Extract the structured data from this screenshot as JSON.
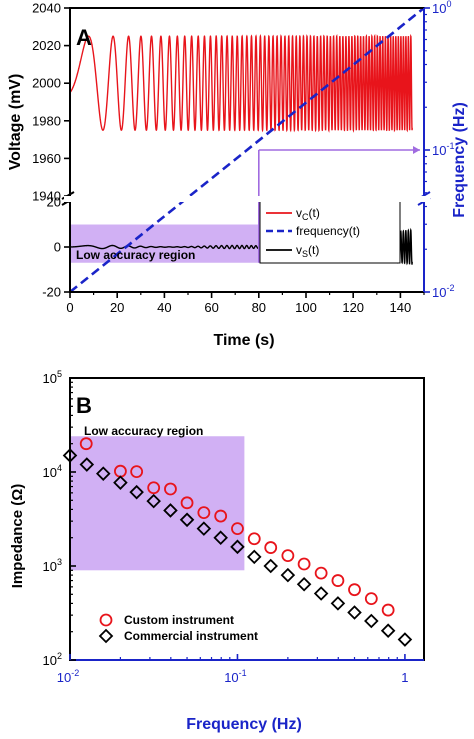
{
  "panel_a": {
    "letter": "A",
    "ylabel_left": "Voltage (mV)",
    "ylabel_right": "Frequency (Hz)",
    "xlabel": "Time (s)",
    "region_label": "Low accuracy region",
    "xticks": [
      "0",
      "20",
      "40",
      "60",
      "80",
      "100",
      "120",
      "140"
    ],
    "yticks_upper": [
      "1940",
      "1960",
      "1980",
      "2000",
      "2020",
      "2040"
    ],
    "yticks_lower": [
      "-20",
      "0",
      "20"
    ],
    "right_tick_labels": [
      {
        "base": "10",
        "exp": "0"
      },
      {
        "base": "10",
        "exp": "-1"
      },
      {
        "base": "10",
        "exp": "-2"
      }
    ],
    "legend": [
      {
        "pre": "v",
        "sub": "C",
        "post": "(t)"
      },
      {
        "pre": "frequency(t)",
        "sub": "",
        "post": ""
      },
      {
        "pre": "v",
        "sub": "S",
        "post": "(t)"
      }
    ]
  },
  "panel_b": {
    "letter": "B",
    "ylabel": "Impedance (Ω)",
    "xlabel": "Frequency (Hz)",
    "region_label": "Low accuracy region",
    "legend": [
      "Custom instrument",
      "Commercial instrument"
    ],
    "xtick_labels": [
      {
        "base": "10",
        "exp": "-2"
      },
      {
        "base": "10",
        "exp": "-1"
      },
      {
        "base": "10",
        "exp": ""
      },
      {
        "base": "",
        "exp": ""
      }
    ],
    "xtick_plain": [
      "",
      "",
      "1"
    ],
    "ytick_labels": [
      {
        "base": "10",
        "exp": "2"
      },
      {
        "base": "10",
        "exp": "3"
      },
      {
        "base": "10",
        "exp": "4"
      },
      {
        "base": "10",
        "exp": "5"
      }
    ]
  },
  "colors": {
    "red": "#e8141b",
    "blue": "#1a24c8",
    "purple": "#a06be0",
    "region": "#c9a2f2",
    "black": "#000000"
  },
  "chart_data": [
    {
      "type": "line",
      "panel": "A",
      "xlabel": "Time (s)",
      "ylabel": "Voltage (mV)",
      "y2label": "Frequency (Hz)",
      "xlim": [
        0,
        150
      ],
      "ylim_upper": [
        1940,
        2040
      ],
      "ylim_lower": [
        -20,
        20
      ],
      "y2lim": [
        0.01,
        1
      ],
      "y2scale": "log",
      "grid": false,
      "legend_position": "right",
      "series": [
        {
          "name": "vC(t)",
          "style": "red solid",
          "center": 2000,
          "amplitude": 25,
          "x_range": [
            0,
            145
          ]
        },
        {
          "name": "frequency(t)",
          "style": "blue dashed",
          "x": [
            0,
            150
          ],
          "y": [
            0.01,
            1
          ]
        },
        {
          "name": "vS(t)",
          "style": "black solid",
          "center": 0,
          "amplitude_max": 7,
          "x_range": [
            0,
            145
          ]
        }
      ],
      "annotations": [
        {
          "text": "Low accuracy region",
          "x_range": [
            0,
            80
          ],
          "y_range": [
            -7,
            10
          ]
        },
        {
          "marker": "frequency at 80 s",
          "x": 80,
          "y2": 0.1
        }
      ]
    },
    {
      "type": "scatter",
      "panel": "B",
      "xlabel": "Frequency (Hz)",
      "ylabel": "Impedance (Ω)",
      "xscale": "log",
      "yscale": "log",
      "xlim": [
        0.01,
        1.3
      ],
      "ylim": [
        100,
        100000
      ],
      "grid": false,
      "legend_position": "bottom-left",
      "series": [
        {
          "name": "Custom instrument",
          "marker": "red circle",
          "x": [
            0.0125,
            0.02,
            0.025,
            0.0316,
            0.0398,
            0.05,
            0.063,
            0.0794,
            0.1,
            0.126,
            0.158,
            0.2,
            0.25,
            0.316,
            0.398,
            0.5,
            0.63,
            0.794
          ],
          "y": [
            20000,
            10200,
            10100,
            6800,
            6600,
            4700,
            3700,
            3400,
            2500,
            1950,
            1570,
            1290,
            1050,
            840,
            700,
            560,
            450,
            340
          ]
        },
        {
          "name": "Commercial instrument",
          "marker": "black diamond",
          "x": [
            0.01,
            0.0126,
            0.0158,
            0.02,
            0.025,
            0.0316,
            0.0398,
            0.05,
            0.063,
            0.0794,
            0.1,
            0.126,
            0.158,
            0.2,
            0.25,
            0.316,
            0.398,
            0.5,
            0.63,
            0.794,
            1.0
          ],
          "y": [
            15000,
            12000,
            9600,
            7700,
            6100,
            4900,
            3900,
            3100,
            2500,
            2000,
            1600,
            1250,
            1000,
            800,
            640,
            510,
            400,
            320,
            260,
            205,
            165
          ]
        }
      ],
      "annotations": [
        {
          "text": "Low accuracy region",
          "x_range": [
            0.01,
            0.11
          ],
          "y_range": [
            900,
            24000
          ]
        }
      ]
    }
  ]
}
